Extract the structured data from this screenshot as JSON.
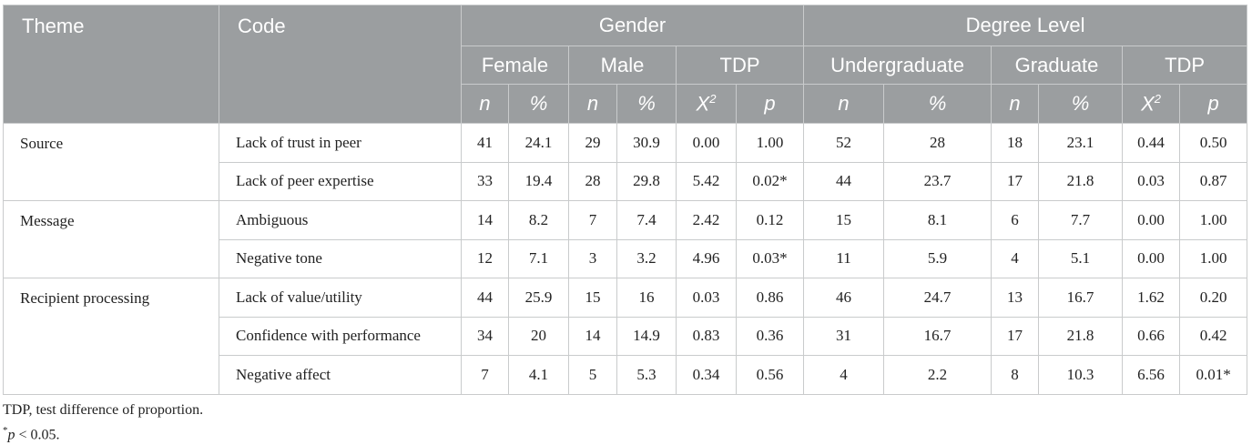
{
  "table": {
    "header": {
      "theme": "Theme",
      "code": "Code",
      "groups": [
        "Gender",
        "Degree Level"
      ],
      "subgroups": [
        "Female",
        "Male",
        "TDP",
        "Undergraduate",
        "Graduate",
        "TDP"
      ],
      "stats": [
        {
          "text": "n"
        },
        {
          "text": "%"
        },
        {
          "text": "n"
        },
        {
          "text": "%"
        },
        {
          "text": "X",
          "sup": "2"
        },
        {
          "text": "p"
        },
        {
          "text": "n"
        },
        {
          "text": "%"
        },
        {
          "text": "n"
        },
        {
          "text": "%"
        },
        {
          "text": "X",
          "sup": "2"
        },
        {
          "text": "p"
        }
      ]
    },
    "groups": [
      {
        "theme": "Source",
        "rows": [
          {
            "code": "Lack of trust in peer",
            "cells": [
              "41",
              "24.1",
              "29",
              "30.9",
              "0.00",
              "1.00",
              "52",
              "28",
              "18",
              "23.1",
              "0.44",
              "0.50"
            ]
          },
          {
            "code": "Lack of peer expertise",
            "cells": [
              "33",
              "19.4",
              "28",
              "29.8",
              "5.42",
              "0.02*",
              "44",
              "23.7",
              "17",
              "21.8",
              "0.03",
              "0.87"
            ]
          }
        ]
      },
      {
        "theme": "Message",
        "rows": [
          {
            "code": "Ambiguous",
            "cells": [
              "14",
              "8.2",
              "7",
              "7.4",
              "2.42",
              "0.12",
              "15",
              "8.1",
              "6",
              "7.7",
              "0.00",
              "1.00"
            ]
          },
          {
            "code": "Negative tone",
            "cells": [
              "12",
              "7.1",
              "3",
              "3.2",
              "4.96",
              "0.03*",
              "11",
              "5.9",
              "4",
              "5.1",
              "0.00",
              "1.00"
            ]
          }
        ]
      },
      {
        "theme": "Recipient processing",
        "rows": [
          {
            "code": "Lack of value/utility",
            "cells": [
              "44",
              "25.9",
              "15",
              "16",
              "0.03",
              "0.86",
              "46",
              "24.7",
              "13",
              "16.7",
              "1.62",
              "0.20"
            ]
          },
          {
            "code": "Confidence with performance",
            "cells": [
              "34",
              "20",
              "14",
              "14.9",
              "0.83",
              "0.36",
              "31",
              "16.7",
              "17",
              "21.8",
              "0.66",
              "0.42"
            ]
          },
          {
            "code": "Negative affect",
            "cells": [
              "7",
              "4.1",
              "5",
              "5.3",
              "0.34",
              "0.56",
              "4",
              "2.2",
              "8",
              "10.3",
              "6.56",
              "0.01*"
            ]
          }
        ]
      }
    ]
  },
  "notes": {
    "abbrev": "TDP, test difference of proportion.",
    "sig": {
      "mark": "*",
      "italic": "p",
      "text": " < 0.05."
    }
  }
}
